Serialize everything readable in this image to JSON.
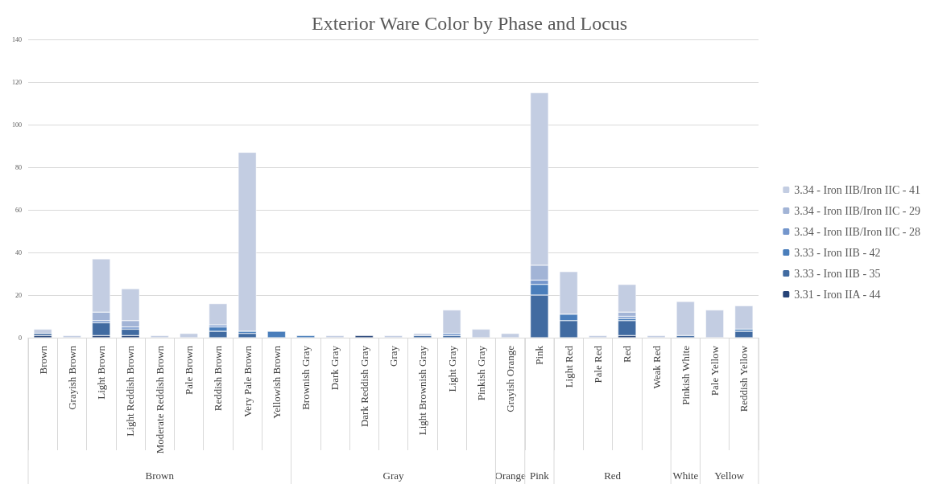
{
  "chart_data": {
    "type": "bar",
    "title": "Exterior Ware Color by Phase and Locus",
    "stacked": true,
    "categories": [
      "Brown",
      "Grayish Brown",
      "Light Brown",
      "Light Reddish Brown",
      "Moderate Reddish Brown",
      "Pale Brown",
      "Reddish Brown",
      "Very Pale Brown",
      "Yellowish Brown",
      "Brownish Gray",
      "Dark Gray",
      "Dark Reddish Gray",
      "Gray",
      "Light Brownish Gray",
      "Light Gray",
      "Pinkish Gray",
      "Grayish Orange",
      "Pink",
      "Light Red",
      "Pale Red",
      "Red",
      "Weak Red",
      "Pinkish White",
      "Pale Yellow",
      "Reddish Yellow"
    ],
    "series": [
      {
        "name": "3.31 - Iron IIA - 44",
        "color": "#264478",
        "values": [
          1,
          null,
          1,
          1,
          null,
          null,
          null,
          null,
          null,
          null,
          null,
          1,
          null,
          null,
          null,
          null,
          null,
          null,
          null,
          null,
          1,
          null,
          null,
          null,
          null
        ]
      },
      {
        "name": "3.33 - Iron IIB - 35",
        "color": "#416ba1",
        "values": [
          1,
          null,
          6,
          3,
          null,
          null,
          3,
          2,
          null,
          null,
          null,
          null,
          null,
          1,
          1,
          null,
          null,
          20,
          8,
          null,
          7,
          null,
          1,
          null,
          3
        ]
      },
      {
        "name": "3.33 - Iron IIB - 42",
        "color": "#4a7ebb",
        "values": [
          null,
          null,
          null,
          null,
          null,
          null,
          2,
          1,
          3,
          1,
          null,
          null,
          null,
          null,
          null,
          null,
          null,
          5,
          3,
          null,
          1,
          null,
          null,
          null,
          1
        ]
      },
      {
        "name": "3.34 - Iron IIB/Iron IIC - 28",
        "color": "#7496cc",
        "values": [
          null,
          null,
          1,
          1,
          null,
          null,
          1,
          null,
          null,
          null,
          null,
          null,
          null,
          null,
          1,
          null,
          null,
          2,
          null,
          null,
          1,
          null,
          null,
          null,
          null
        ]
      },
      {
        "name": "3.34 - Iron IIB/Iron IIC - 29",
        "color": "#a2b4d6",
        "values": [
          null,
          null,
          4,
          3,
          null,
          null,
          null,
          null,
          null,
          null,
          null,
          null,
          null,
          null,
          null,
          null,
          null,
          7,
          null,
          null,
          2,
          null,
          null,
          null,
          null
        ]
      },
      {
        "name": "3.34 - Iron IIB/Iron IIC - 41",
        "color": "#c3cde2",
        "values": [
          2,
          1,
          25,
          15,
          1,
          2,
          10,
          84,
          null,
          null,
          1,
          null,
          1,
          1,
          11,
          4,
          2,
          81,
          20,
          1,
          13,
          1,
          16,
          13,
          11
        ]
      }
    ],
    "ylim": [
      0,
      140
    ],
    "yticks": [
      0,
      20,
      40,
      60,
      80,
      100,
      120,
      140
    ],
    "grid": "y",
    "legend": "right",
    "annotations": [
      "Brown",
      "Gray",
      "Orange",
      "Pink",
      "Red",
      "White",
      "Yellow"
    ]
  }
}
